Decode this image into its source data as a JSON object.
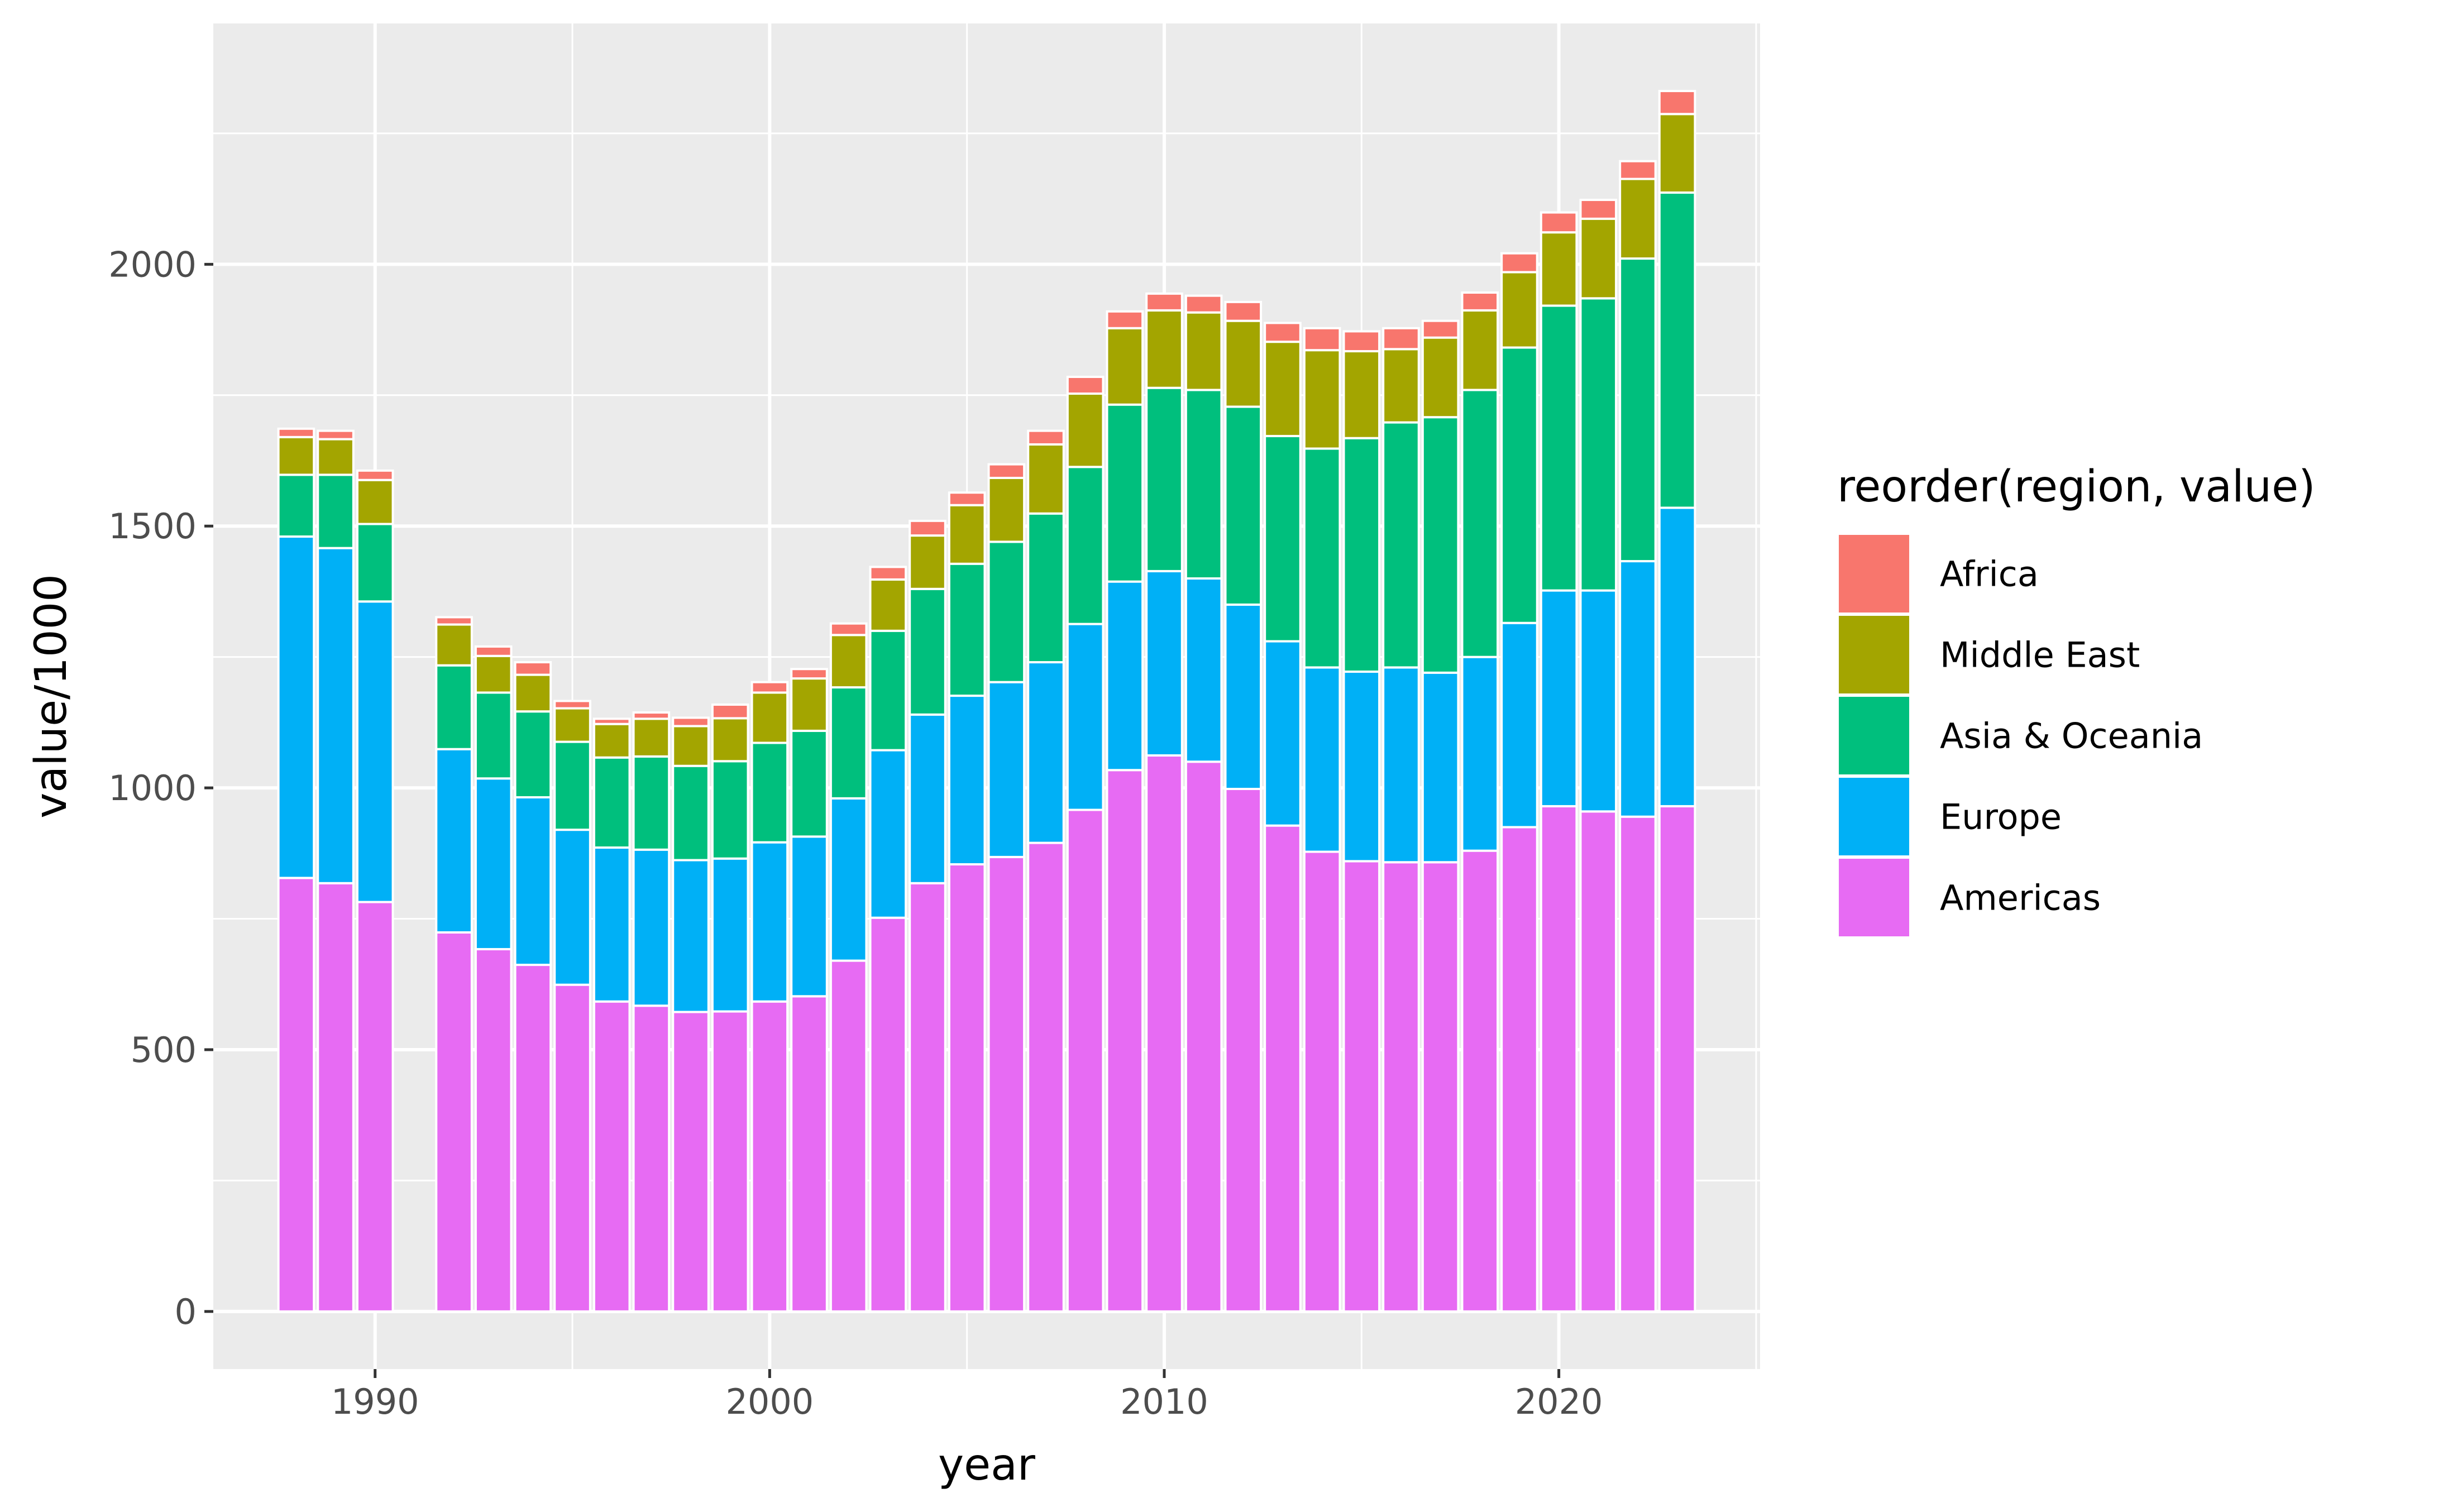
{
  "chart_data": {
    "type": "bar",
    "stacked": true,
    "xlabel": "year",
    "ylabel": "value/1000",
    "ylim": [
      -110,
      2460
    ],
    "xlim": [
      1985.9,
      2025.1
    ],
    "x_ticks": [
      1990,
      2000,
      2010,
      2020
    ],
    "y_ticks": [
      0,
      500,
      1000,
      1500,
      2000
    ],
    "grid": true,
    "legend_position": "right",
    "legend_title": "reorder(region, value)",
    "x": [
      1988,
      1989,
      1990,
      1992,
      1993,
      1994,
      1995,
      1996,
      1997,
      1998,
      1999,
      2000,
      2001,
      2002,
      2003,
      2004,
      2005,
      2006,
      2007,
      2008,
      2009,
      2010,
      2011,
      2012,
      2013,
      2014,
      2015,
      2016,
      2017,
      2018,
      2019,
      2020,
      2021,
      2022,
      2023
    ],
    "series": [
      {
        "name": "Americas",
        "color": "#E76BF3",
        "values": [
          828,
          818,
          782,
          724,
          692,
          662,
          624,
          592,
          584,
          572,
          573,
          592,
          602,
          670,
          752,
          818,
          854,
          868,
          895,
          958,
          1034,
          1062,
          1050,
          998,
          928,
          878,
          860,
          858,
          858,
          880,
          925,
          965,
          955,
          945,
          965
        ]
      },
      {
        "name": "Europe",
        "color": "#00B0F6",
        "values": [
          652,
          640,
          574,
          350,
          326,
          320,
          296,
          294,
          298,
          290,
          292,
          304,
          305,
          310,
          320,
          322,
          322,
          334,
          345,
          355,
          360,
          352,
          350,
          352,
          352,
          352,
          362,
          372,
          362,
          370,
          390,
          412,
          422,
          488,
          570
        ]
      },
      {
        "name": "Asia & Oceania",
        "color": "#00BF7D",
        "values": [
          118,
          140,
          148,
          160,
          164,
          164,
          168,
          172,
          178,
          180,
          186,
          190,
          202,
          212,
          228,
          240,
          252,
          268,
          284,
          300,
          338,
          350,
          360,
          378,
          392,
          418,
          446,
          468,
          488,
          510,
          526,
          544,
          558,
          578,
          602
        ]
      },
      {
        "name": "Middle East",
        "color": "#A3A500",
        "values": [
          72,
          68,
          84,
          78,
          70,
          70,
          64,
          64,
          72,
          76,
          82,
          96,
          100,
          100,
          98,
          102,
          112,
          122,
          132,
          140,
          146,
          148,
          148,
          164,
          180,
          188,
          166,
          140,
          152,
          152,
          144,
          140,
          152,
          152,
          150
        ]
      },
      {
        "name": "Africa",
        "color": "#F8766D",
        "values": [
          16,
          16,
          18,
          14,
          18,
          24,
          14,
          10,
          12,
          16,
          26,
          20,
          18,
          22,
          24,
          28,
          24,
          26,
          26,
          32,
          32,
          32,
          32,
          36,
          36,
          42,
          38,
          40,
          32,
          34,
          36,
          38,
          36,
          34,
          44
        ]
      }
    ],
    "legend_order": [
      "Africa",
      "Middle East",
      "Asia & Oceania",
      "Europe",
      "Americas"
    ]
  }
}
